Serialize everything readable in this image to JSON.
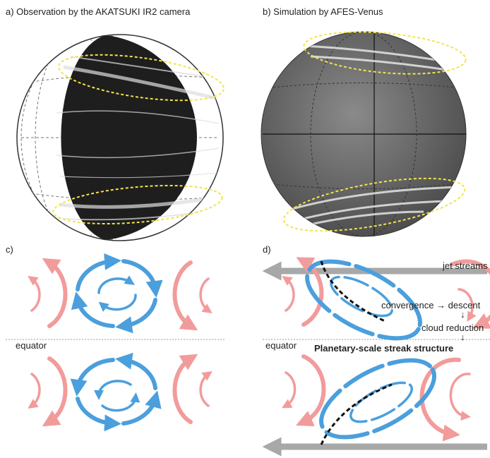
{
  "panels": [
    {
      "label": "a) Observation by the AKATSUKI IR2 camera"
    },
    {
      "label": "b) Simulation by AFES-Venus"
    },
    {
      "label": "c)",
      "equator": "equator"
    },
    {
      "label": "d)",
      "equator": "equator",
      "annotations": [
        "jet streams",
        "convergence → descent",
        "↓",
        "cloud reduction",
        "↓",
        "Planetary-scale streak structure"
      ]
    }
  ]
}
